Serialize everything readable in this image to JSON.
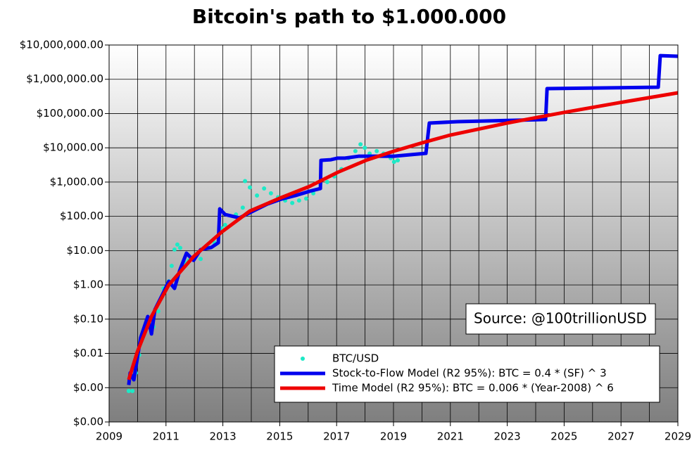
{
  "chart_data": {
    "type": "line",
    "title": "Bitcoin's path to $1.000.000",
    "annotation": "Source: @100trillionUSD",
    "log_y": true,
    "grid": true,
    "legend_position": "lower right",
    "xlim": [
      2009,
      2029
    ],
    "xticks": [
      2009,
      2011,
      2013,
      2015,
      2017,
      2019,
      2021,
      2023,
      2025,
      2027,
      2029
    ],
    "ylim": [
      0.0001,
      10000000
    ],
    "yticks": [
      {
        "value": 0.0001,
        "label": "$0.00"
      },
      {
        "value": 0.001,
        "label": "$0.00"
      },
      {
        "value": 0.01,
        "label": "$0.01"
      },
      {
        "value": 0.1,
        "label": "$0.10"
      },
      {
        "value": 1,
        "label": "$1.00"
      },
      {
        "value": 10,
        "label": "$10.00"
      },
      {
        "value": 100,
        "label": "$100.00"
      },
      {
        "value": 1000,
        "label": "$1,000.00"
      },
      {
        "value": 10000,
        "label": "$10,000.00"
      },
      {
        "value": 100000,
        "label": "$100,000.00"
      },
      {
        "value": 1000000,
        "label": "$1,000,000.00"
      },
      {
        "value": 10000000,
        "label": "$10,000,000.00"
      }
    ],
    "series": [
      {
        "name": "BTC/USD",
        "type": "scatter",
        "color": "#1de9c6",
        "x": [
          2009.69,
          2009.82,
          2009.94,
          2010.06,
          2010.19,
          2010.31,
          2010.44,
          2010.56,
          2010.73,
          2010.91,
          2011.1,
          2011.2,
          2011.3,
          2011.4,
          2011.5,
          2011.65,
          2011.8,
          2011.97,
          2012.22,
          2012.47,
          2012.71,
          2012.96,
          2013.08,
          2013.46,
          2013.7,
          2013.78,
          2013.95,
          2014.2,
          2014.45,
          2014.69,
          2014.94,
          2015.19,
          2015.44,
          2015.68,
          2015.93,
          2016.18,
          2016.43,
          2016.67,
          2016.92,
          2017.17,
          2017.42,
          2017.66,
          2017.84,
          2017.99,
          2018.16,
          2018.41,
          2018.65,
          2018.9,
          2019.02,
          2019.15
        ],
        "values": [
          0.0008,
          0.0008,
          0.0027,
          0.009,
          0.029,
          0.06,
          0.075,
          0.06,
          0.17,
          0.79,
          1.27,
          3.6,
          10.7,
          15,
          12,
          4.6,
          5.2,
          5.7,
          5.7,
          13,
          17,
          45,
          56,
          113,
          180,
          1070,
          700,
          406,
          650,
          470,
          360,
          290,
          245,
          290,
          330,
          470,
          920,
          1000,
          1460,
          2390,
          5000,
          8000,
          12600,
          10000,
          6800,
          8000,
          6800,
          5000,
          3900,
          4300
        ]
      },
      {
        "name": "Stock-to-Flow Model (R2 95%): BTC = 0.4 * (SF) ^ 3",
        "type": "line",
        "color": "#0000ee",
        "x": [
          2009.69,
          2009.74,
          2009.87,
          2009.99,
          2010.11,
          2010.36,
          2010.49,
          2010.61,
          2010.86,
          2011.1,
          2011.3,
          2011.48,
          2011.72,
          2011.97,
          2012.22,
          2012.59,
          2012.84,
          2012.89,
          2013.08,
          2013.58,
          2014.07,
          2014.57,
          2015.06,
          2015.56,
          2016.05,
          2016.43,
          2016.45,
          2016.8,
          2017.04,
          2017.29,
          2017.79,
          2019.02,
          2020.14,
          2020.26,
          2021.25,
          2024.35,
          2024.4,
          2028.31,
          2028.38,
          2029
        ],
        "values": [
          0.0012,
          0.0027,
          0.0017,
          0.0071,
          0.029,
          0.12,
          0.037,
          0.19,
          0.49,
          1.27,
          0.79,
          2.6,
          8.4,
          5.2,
          10.7,
          12.3,
          17,
          165,
          113,
          90,
          143,
          230,
          320,
          406,
          540,
          650,
          4300,
          4500,
          5000,
          5000,
          5700,
          5700,
          6900,
          52700,
          58000,
          67000,
          534000,
          587000,
          4900000,
          4700000
        ]
      },
      {
        "name": "Time Model (R2 95%): BTC = 0.006 * (Year-2008) ^ 6",
        "type": "line",
        "color": "#ee0000",
        "x": [
          2009.69,
          2009.99,
          2010.49,
          2011.1,
          2011.97,
          2012.96,
          2013.95,
          2014.99,
          2016.05,
          2017.04,
          2018.03,
          2019.02,
          2020.01,
          2021.0,
          2022.99,
          2024.97,
          2026.95,
          2029
        ],
        "values": [
          0.0017,
          0.011,
          0.12,
          1.0,
          6.7,
          35,
          143,
          336,
          750,
          1930,
          4300,
          8000,
          14000,
          23600,
          52700,
          107000,
          208000,
          402000
        ]
      }
    ]
  }
}
